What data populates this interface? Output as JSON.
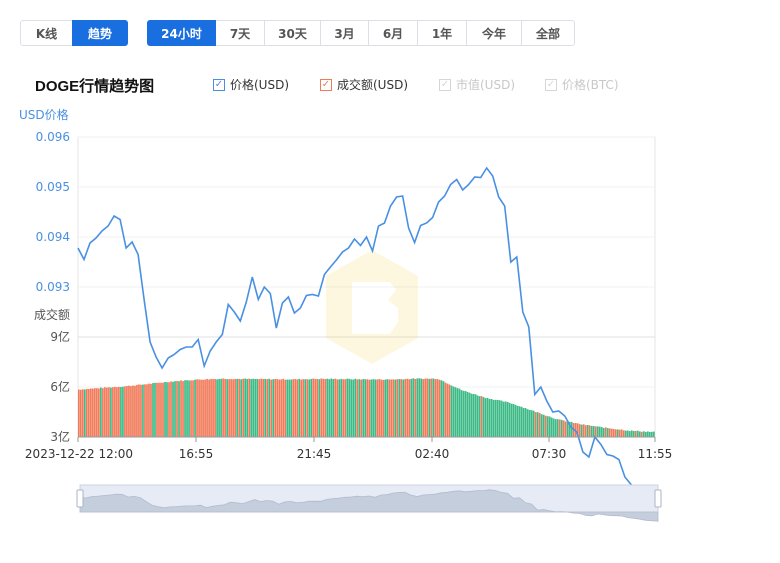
{
  "mode_tabs": [
    {
      "label": "K线",
      "active": false
    },
    {
      "label": "趋势",
      "active": true
    }
  ],
  "range_tabs": [
    {
      "label": "24小时",
      "active": true
    },
    {
      "label": "7天",
      "active": false
    },
    {
      "label": "30天",
      "active": false
    },
    {
      "label": "3月",
      "active": false
    },
    {
      "label": "6月",
      "active": false
    },
    {
      "label": "1年",
      "active": false
    },
    {
      "label": "今年",
      "active": false
    },
    {
      "label": "全部",
      "active": false
    }
  ],
  "chart_title": "DOGE行情趋势图",
  "legend": [
    {
      "label": "价格(USD)",
      "checked": true,
      "enabled": true,
      "color": "#4a90e2"
    },
    {
      "label": "成交额(USD)",
      "checked": true,
      "enabled": true,
      "color": "#f07a5a"
    },
    {
      "label": "市值(USD)",
      "checked": true,
      "enabled": false,
      "color": "#cccccc"
    },
    {
      "label": "价格(BTC)",
      "checked": true,
      "enabled": false,
      "color": "#cccccc"
    }
  ],
  "colors": {
    "accent": "#1a6fe0",
    "price_line": "#4a90e2",
    "volume_up": "#f07a5a",
    "volume_down": "#3dba86",
    "axis_label": "#4a90e2"
  },
  "chart_data": {
    "type": "line",
    "price_axis": {
      "label": "USD价格",
      "ylim": [
        0.092,
        0.096
      ],
      "ticks": [
        "0.096",
        "0.095",
        "0.094",
        "0.093"
      ]
    },
    "volume_axis": {
      "label": "成交额",
      "ylim": [
        3,
        9
      ],
      "ticks": [
        "9亿",
        "6亿",
        "3亿"
      ]
    },
    "x_ticks": [
      "2023-12-22 12:00",
      "16:55",
      "21:45",
      "02:40",
      "07:30",
      "11:55"
    ],
    "price_series": {
      "name": "价格(USD)",
      "x": [
        0,
        0.25,
        0.5,
        0.75,
        1,
        1.25,
        1.5,
        1.75,
        2,
        2.25,
        2.5,
        2.75,
        3,
        3.25,
        3.5,
        3.75,
        4,
        4.25,
        4.5,
        4.75,
        5,
        5.25,
        5.5,
        5.75,
        6,
        6.25,
        6.5,
        6.75,
        7,
        7.25,
        7.5,
        7.75,
        8,
        8.25,
        8.5,
        8.75,
        9,
        9.25,
        9.5,
        9.75,
        10,
        10.25,
        10.5,
        10.75,
        11,
        11.25,
        11.5,
        11.75,
        12,
        12.25,
        12.5,
        12.75,
        13,
        13.25,
        13.5,
        13.75,
        14,
        14.25,
        14.5,
        14.75,
        15,
        15.25,
        15.5,
        15.75,
        16,
        16.25,
        16.5,
        16.75,
        17,
        17.25,
        17.5,
        17.75,
        18,
        18.25,
        18.5,
        18.75,
        19,
        19.25,
        19.5,
        19.75,
        20,
        20.25,
        20.5,
        20.75,
        21,
        21.25,
        21.5,
        21.75,
        22,
        22.25,
        22.5,
        22.75,
        23,
        23.25,
        23.5,
        23.75,
        24
      ],
      "values": [
        0.09378,
        0.09355,
        0.09388,
        0.09398,
        0.09412,
        0.09422,
        0.09442,
        0.09435,
        0.09378,
        0.0939,
        0.09365,
        0.09275,
        0.0919,
        0.0916,
        0.09138,
        0.09158,
        0.09165,
        0.09175,
        0.0918,
        0.0918,
        0.09195,
        0.09142,
        0.09172,
        0.0919,
        0.09205,
        0.09265,
        0.0925,
        0.09232,
        0.0927,
        0.0932,
        0.09275,
        0.093,
        0.09287,
        0.09218,
        0.09268,
        0.0928,
        0.09248,
        0.09258,
        0.09283,
        0.09285,
        0.09282,
        0.09325,
        0.0934,
        0.09354,
        0.0937,
        0.09378,
        0.09396,
        0.09383,
        0.094,
        0.09372,
        0.09422,
        0.09428,
        0.09462,
        0.0948,
        0.09482,
        0.09418,
        0.09389,
        0.09423,
        0.09428,
        0.09439,
        0.0947,
        0.09482,
        0.09505,
        0.09515,
        0.09494,
        0.09505,
        0.0952,
        0.09519,
        0.09538,
        0.09522,
        0.0948,
        0.09462,
        0.0935,
        0.0936,
        0.0925,
        0.0922,
        0.09085,
        0.091,
        0.09072,
        0.0905,
        0.09052,
        0.09042,
        0.0902,
        0.0901,
        0.0897,
        0.0896,
        0.09,
        0.08985,
        0.08965,
        0.08962,
        0.08955,
        0.0892,
        0.08905,
        0.08885,
        0.0886,
        0.08852,
        0.0884
      ]
    },
    "volume_series": {
      "name": "成交额(USD)",
      "x": [
        0,
        1,
        2,
        3,
        4,
        5,
        6,
        7,
        8,
        9,
        10,
        11,
        12,
        13,
        14,
        15,
        16,
        17,
        18,
        19,
        20,
        21,
        22,
        23,
        24
      ],
      "values": [
        5.85,
        5.95,
        6.05,
        6.2,
        6.35,
        6.45,
        6.5,
        6.48,
        6.47,
        6.46,
        6.49,
        6.48,
        6.46,
        6.45,
        6.5,
        6.5,
        5.8,
        5.35,
        5.05,
        4.55,
        4.05,
        3.75,
        3.55,
        3.38,
        3.3
      ]
    }
  }
}
